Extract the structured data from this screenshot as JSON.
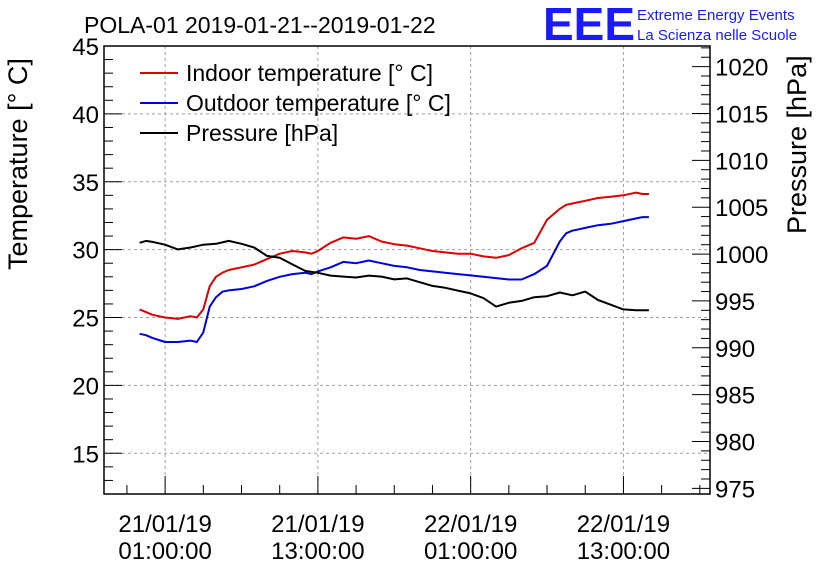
{
  "chart_data": {
    "type": "line",
    "title": "POLA-01 2019-01-21--2019-01-22",
    "ylabel": "Temperature [° C]",
    "y2label": "Pressure [hPa]",
    "ylim": [
      12,
      45
    ],
    "y2lim": [
      974.4,
      1022.2
    ],
    "yticks": [
      15,
      20,
      25,
      30,
      35,
      40,
      45
    ],
    "y2ticks": [
      975,
      980,
      985,
      990,
      995,
      1000,
      1005,
      1010,
      1015,
      1020
    ],
    "xlim_hours": [
      -4.8,
      42.8
    ],
    "xticks": [
      {
        "hour": 0,
        "line1": "21/01/19",
        "line2": "01:00:00"
      },
      {
        "hour": 12,
        "line1": "21/01/19",
        "line2": "13:00:00"
      },
      {
        "hour": 24,
        "line1": "22/01/19",
        "line2": "01:00:00"
      },
      {
        "hour": 36,
        "line1": "22/01/19",
        "line2": "13:00:00"
      }
    ],
    "x_unit": "hours since 21/01/19 01:00:00",
    "grid": true,
    "legend_position": "top-left",
    "series": [
      {
        "name": "Indoor temperature [° C]",
        "axis": "left",
        "color": "#dd0000",
        "x": [
          -2,
          -1.5,
          -1,
          0,
          1,
          2,
          2.5,
          3,
          3.5,
          4,
          4.5,
          5,
          6,
          7,
          8,
          9,
          10,
          11,
          11.5,
          12,
          12.5,
          13,
          14,
          15,
          16,
          17,
          18,
          19,
          20,
          21,
          22,
          23,
          24,
          25,
          26,
          27,
          28,
          29,
          30,
          31,
          31.5,
          32,
          32.5,
          33,
          34,
          35,
          36,
          37,
          37.5,
          38
        ],
        "values": [
          25.6,
          25.4,
          25.2,
          25.0,
          24.9,
          25.1,
          25.0,
          25.6,
          27.3,
          28.0,
          28.3,
          28.5,
          28.7,
          28.9,
          29.3,
          29.7,
          29.9,
          29.8,
          29.7,
          29.9,
          30.2,
          30.5,
          30.9,
          30.8,
          31.0,
          30.6,
          30.4,
          30.3,
          30.1,
          29.9,
          29.8,
          29.7,
          29.7,
          29.5,
          29.4,
          29.6,
          30.1,
          30.5,
          32.2,
          33.0,
          33.3,
          33.4,
          33.5,
          33.6,
          33.8,
          33.9,
          34.0,
          34.2,
          34.1,
          34.1
        ]
      },
      {
        "name": "Outdoor temperature [° C]",
        "axis": "left",
        "color": "#0000dd",
        "x": [
          -2,
          -1.5,
          -1,
          0,
          1,
          2,
          2.5,
          3,
          3.5,
          4,
          4.5,
          5,
          6,
          7,
          8,
          9,
          10,
          11,
          11.5,
          12,
          13,
          14,
          15,
          16,
          17,
          18,
          19,
          20,
          21,
          22,
          23,
          24,
          25,
          26,
          27,
          28,
          29,
          30,
          31,
          31.5,
          32,
          32.5,
          33,
          34,
          35,
          36,
          37,
          37.5,
          38
        ],
        "values": [
          23.8,
          23.7,
          23.5,
          23.2,
          23.2,
          23.3,
          23.2,
          23.9,
          25.8,
          26.5,
          26.9,
          27.0,
          27.1,
          27.3,
          27.7,
          28.0,
          28.2,
          28.3,
          28.2,
          28.4,
          28.7,
          29.1,
          29.0,
          29.2,
          29.0,
          28.8,
          28.7,
          28.5,
          28.4,
          28.3,
          28.2,
          28.1,
          28.0,
          27.9,
          27.8,
          27.8,
          28.2,
          28.8,
          30.6,
          31.2,
          31.4,
          31.5,
          31.6,
          31.8,
          31.9,
          32.1,
          32.3,
          32.4,
          32.4
        ]
      },
      {
        "name": "Pressure [hPa]",
        "axis": "right",
        "color": "#000000",
        "x": [
          -2,
          -1.5,
          -1,
          0,
          1,
          2,
          3,
          4,
          5,
          6,
          7,
          8,
          9,
          10,
          11,
          11.5,
          12,
          13,
          14,
          15,
          16,
          17,
          18,
          19,
          20,
          21,
          22,
          23,
          24,
          25,
          26,
          27,
          28,
          29,
          30,
          31,
          32,
          33,
          34,
          35,
          36,
          37,
          37.5,
          38
        ],
        "values": [
          1001.2,
          1001.4,
          1001.3,
          1001.0,
          1000.5,
          1000.7,
          1001.0,
          1001.1,
          1001.4,
          1001.1,
          1000.7,
          999.8,
          999.6,
          998.9,
          998.2,
          998.1,
          998.0,
          997.7,
          997.6,
          997.5,
          997.7,
          997.6,
          997.3,
          997.4,
          997.0,
          996.6,
          996.4,
          996.1,
          995.8,
          995.3,
          994.4,
          994.8,
          995.0,
          995.4,
          995.5,
          995.9,
          995.6,
          996.0,
          995.1,
          994.6,
          994.1,
          994.0,
          994.0,
          994.0
        ]
      }
    ]
  },
  "logo": {
    "mark": "EEE",
    "line1": "Extreme Energy Events",
    "line2": "La Scienza nelle Scuole",
    "color": "#1a1aff"
  },
  "grid_color": "#a0a0a0"
}
